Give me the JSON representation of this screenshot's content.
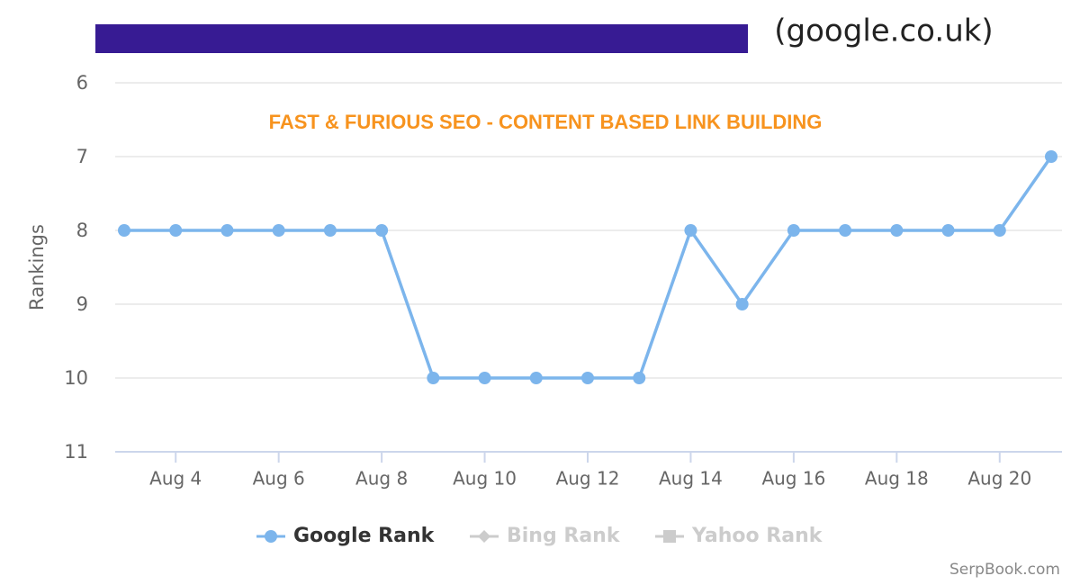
{
  "header": {
    "site": "(google.co.uk)"
  },
  "chart_data": {
    "type": "line",
    "title": "FAST & FURIOUS SEO - CONTENT BASED LINK BUILDING",
    "y_label": "Rankings",
    "categories": [
      null,
      "Aug 4",
      null,
      "Aug 6",
      null,
      "Aug 8",
      null,
      "Aug 10",
      null,
      "Aug 12",
      null,
      "Aug 14",
      null,
      "Aug 16",
      null,
      "Aug 18",
      null,
      "Aug 20",
      null
    ],
    "series": [
      {
        "name": "Google Rank",
        "color": "#7cb5ec",
        "marker": "circle",
        "visible": true,
        "values": [
          8,
          8,
          8,
          8,
          8,
          8,
          10,
          10,
          10,
          10,
          10,
          8,
          9,
          8,
          8,
          8,
          8,
          8,
          7
        ]
      },
      {
        "name": "Bing Rank",
        "color": "#cccccc",
        "marker": "diamond",
        "visible": false
      },
      {
        "name": "Yahoo Rank",
        "color": "#cccccc",
        "marker": "square",
        "visible": false
      }
    ],
    "ylim": [
      6,
      11
    ],
    "y_reversed": true,
    "yticks": [
      6,
      7,
      8,
      9,
      10,
      11
    ],
    "grid": true,
    "legend": "bottom"
  },
  "footer": {
    "credit": "SerpBook.com"
  }
}
